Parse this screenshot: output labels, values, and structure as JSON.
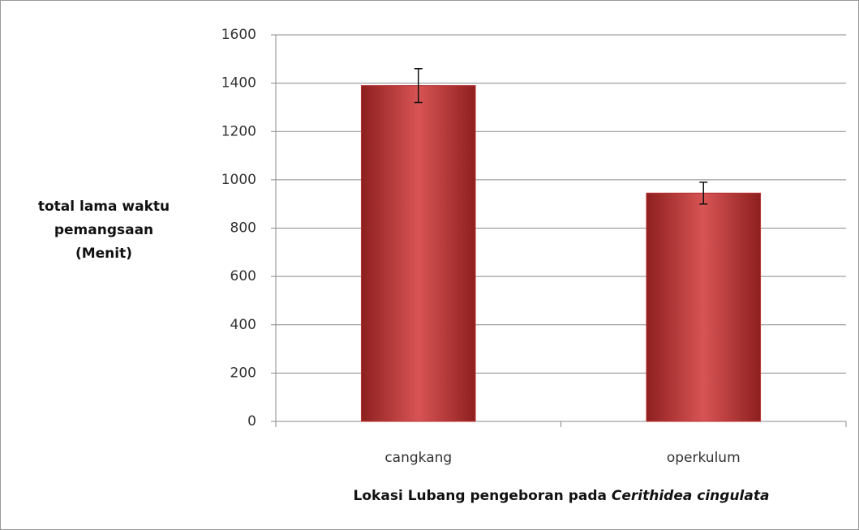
{
  "chart_data": {
    "type": "bar",
    "y_label": [
      "total lama waktu",
      "pemangsaan",
      "(Menit)"
    ],
    "x_label": {
      "text": "Lokasi Lubang pengeboran pada",
      "italic": "Cerithidea cingulata"
    },
    "categories": [
      "cangkang",
      "operkulum"
    ],
    "values": [
      1390,
      945
    ],
    "errors": [
      70,
      45
    ],
    "color": "#b83232",
    "ylim": [
      0,
      1600
    ],
    "yticks": [
      0,
      200,
      400,
      600,
      800,
      1000,
      1200,
      1400,
      1600
    ],
    "grid": true
  }
}
